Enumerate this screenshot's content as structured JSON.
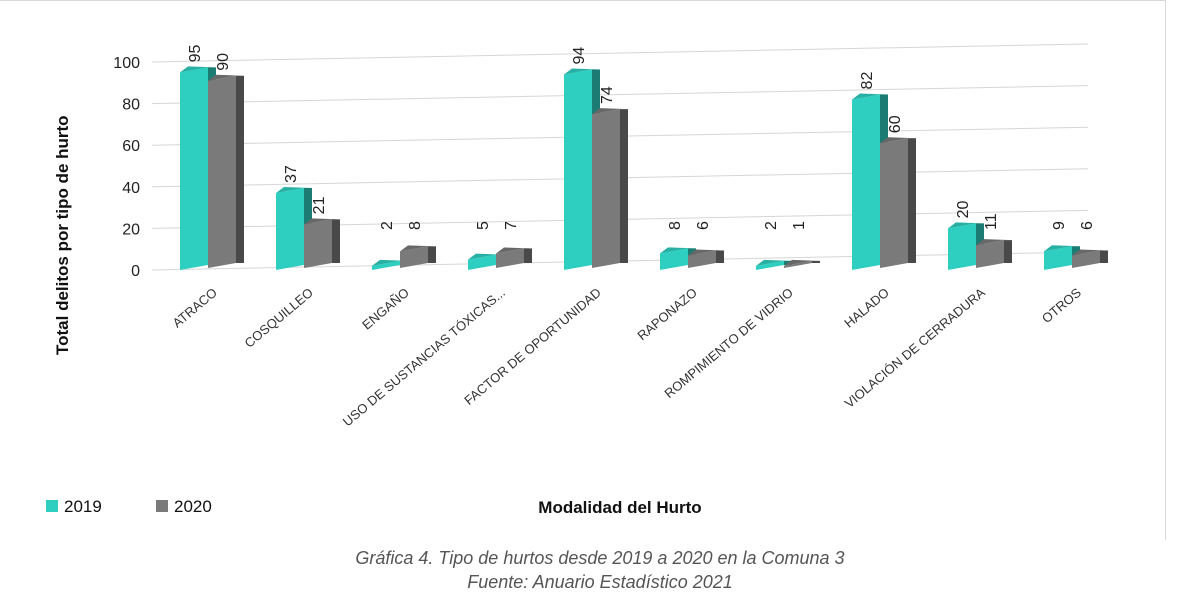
{
  "chart_data": {
    "type": "bar",
    "ylabel": "Total delitos por tipo de hurto",
    "xlabel": "Modalidad del Hurto",
    "ylim": [
      0,
      100
    ],
    "yticks": [
      0,
      20,
      40,
      60,
      80,
      100
    ],
    "grid": true,
    "legend_position": "bottom-left",
    "categories": [
      "ATRACO",
      "COSQUILLEO",
      "ENGAÑO",
      "USO DE SUSTANCIAS TÓXICAS...",
      "FACTOR DE OPORTUNIDAD",
      "RAPONAZO",
      "ROMPIMIENTO DE VIDRIO",
      "HALADO",
      "VIOLACIÓN DE CERRADURA",
      "OTROS"
    ],
    "series": [
      {
        "name": "2019",
        "color": "#2ecfc0",
        "values": [
          95,
          37,
          2,
          5,
          94,
          8,
          2,
          82,
          20,
          9
        ]
      },
      {
        "name": "2020",
        "color": "#7a7a7a",
        "values": [
          90,
          21,
          8,
          7,
          74,
          6,
          1,
          60,
          11,
          6
        ]
      }
    ]
  },
  "caption": {
    "title": "Gráfica 4. Tipo de hurtos desde 2019 a 2020 en la Comuna 3",
    "source": "Fuente: Anuario Estadístico 2021"
  }
}
